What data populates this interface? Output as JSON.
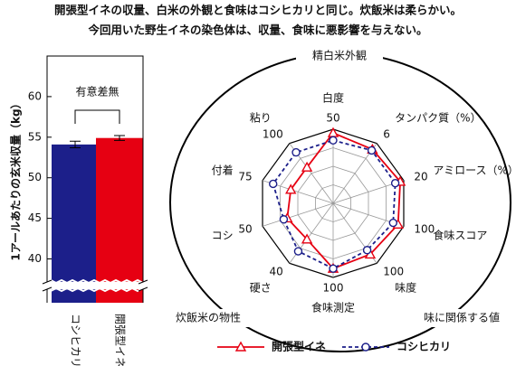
{
  "header": {
    "lines": [
      "開張型イネの収量、白米の外観と食味はコシヒカリと同じ。炊飯米は柔らかい。",
      "今回用いた野生イネの染色体は、収量、食味に悪影響を与えない。"
    ]
  },
  "chart_data": [
    {
      "type": "bar",
      "ylabel": "1アールあたりの玄米収量（kg）",
      "annotation": "有意差無",
      "categories": [
        "コシヒカリ",
        "開張型イネ"
      ],
      "values": [
        54.1,
        54.9
      ],
      "errors": [
        0.4,
        0.3
      ],
      "colors": [
        "#1c1f8a",
        "#e60012"
      ],
      "ylim": [
        34.6,
        65
      ],
      "yticks": [
        40,
        45,
        50,
        55,
        60
      ]
    },
    {
      "type": "radar",
      "groups": [
        "精白米外観",
        "炊飯米の物性",
        "味に関係する値"
      ],
      "axes": [
        "白度",
        "タンパク質（%）",
        "アミロース（%）",
        "食味スコア",
        "味度",
        "食味測定",
        "硬さ",
        "コシ",
        "付着",
        "粘り"
      ],
      "axis_max": [
        50,
        6,
        20,
        100,
        100,
        100,
        40,
        50,
        75,
        100
      ],
      "series": [
        {
          "name": "開張型イネ",
          "color": "#e60012",
          "marker": "triangle",
          "dashed": false,
          "values": [
            47.5,
            5.4,
            19,
            92,
            85,
            88,
            24,
            32.5,
            45,
            60
          ]
        },
        {
          "name": "コシヒカリ",
          "color": "#1c1f8a",
          "marker": "circle",
          "dashed": true,
          "values": [
            42.5,
            5.3,
            17.6,
            85,
            78,
            88,
            32,
            35,
            63.75,
            85
          ]
        }
      ]
    }
  ]
}
